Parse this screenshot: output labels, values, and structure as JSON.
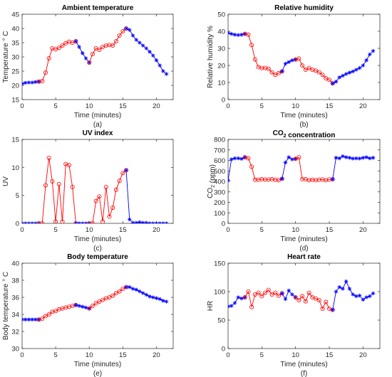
{
  "figure": {
    "colors": {
      "blue": "#0000ff",
      "red": "#ff0000"
    }
  },
  "chart_data": [
    {
      "type": "line",
      "title": "Ambient temperature",
      "xlabel": "Time (minutes)",
      "ylabel": "Temperature ° C",
      "caption": "(a)",
      "xlim": [
        0,
        22.5
      ],
      "ylim": [
        15,
        45
      ],
      "xticks": [
        0,
        5,
        10,
        15,
        20
      ],
      "yticks": [
        15,
        20,
        25,
        30,
        35,
        40,
        45
      ],
      "grid": false,
      "series": [
        {
          "color": "#0000ff",
          "marker": "star",
          "x": [
            0,
            0.5,
            1,
            1.5,
            2,
            2.5
          ],
          "y": [
            20.6,
            20.9,
            21.0,
            21.0,
            21.2,
            21.3
          ]
        },
        {
          "color": "#ff0000",
          "marker": "circle",
          "x": [
            2.5,
            3,
            3.5,
            4,
            4.5,
            5,
            5.5,
            6,
            6.5,
            7,
            7.5,
            8
          ],
          "y": [
            21.3,
            21.5,
            24.5,
            29.5,
            33.0,
            32.7,
            33.2,
            34.0,
            34.8,
            35.3,
            35.0,
            35.5
          ]
        },
        {
          "color": "#0000ff",
          "marker": "star",
          "x": [
            8,
            8.5,
            9,
            9.5,
            10
          ],
          "y": [
            35.5,
            33.5,
            31.3,
            29.5,
            28.0
          ]
        },
        {
          "color": "#ff0000",
          "marker": "circle",
          "x": [
            10,
            10.5,
            11,
            11.5,
            12,
            12.5,
            13,
            13.5,
            14,
            14.5,
            15,
            15.5
          ],
          "y": [
            28.0,
            31.0,
            33.0,
            32.5,
            33.5,
            34.0,
            34.2,
            34.0,
            35.5,
            37.5,
            39.0,
            40.0
          ]
        },
        {
          "color": "#0000ff",
          "marker": "star",
          "x": [
            15.5,
            16,
            16.5,
            17,
            17.5,
            18,
            18.5,
            19,
            19.5,
            20,
            20.5,
            21,
            21.5
          ],
          "y": [
            40.0,
            39.5,
            37.5,
            36.0,
            35.0,
            34.0,
            33.0,
            31.8,
            30.5,
            28.8,
            27.0,
            25.0,
            24.0
          ]
        }
      ]
    },
    {
      "type": "line",
      "title": "Relative humidity",
      "xlabel": "Time (minutes)",
      "ylabel": "Relative humidity %",
      "caption": "(b)",
      "xlim": [
        0,
        22.5
      ],
      "ylim": [
        0,
        50
      ],
      "xticks": [
        0,
        5,
        10,
        15,
        20
      ],
      "yticks": [
        0,
        10,
        20,
        30,
        40,
        50
      ],
      "grid": false,
      "series": [
        {
          "color": "#0000ff",
          "marker": "star",
          "x": [
            0,
            0.5,
            1,
            1.5,
            2,
            2.5
          ],
          "y": [
            39.0,
            38.5,
            38.0,
            37.8,
            38.0,
            38.5
          ]
        },
        {
          "color": "#ff0000",
          "marker": "circle",
          "x": [
            2.5,
            3,
            3.5,
            4,
            4.5,
            5,
            5.5,
            6,
            6.5,
            7,
            7.5,
            8
          ],
          "y": [
            38.5,
            38.0,
            32.0,
            23.5,
            19.0,
            18.5,
            18.5,
            18.0,
            16.0,
            14.5,
            15.5,
            16.5
          ]
        },
        {
          "color": "#0000ff",
          "marker": "star",
          "x": [
            8,
            8.5,
            9,
            9.5,
            10
          ],
          "y": [
            16.5,
            21.0,
            22.0,
            23.0,
            23.5
          ]
        },
        {
          "color": "#ff0000",
          "marker": "circle",
          "x": [
            10,
            10.5,
            11,
            11.5,
            12,
            12.5,
            13,
            13.5,
            14,
            14.5,
            15,
            15.5
          ],
          "y": [
            23.5,
            24.0,
            20.0,
            17.5,
            18.5,
            17.5,
            17.0,
            16.0,
            14.5,
            12.5,
            11.5,
            9.5
          ]
        },
        {
          "color": "#0000ff",
          "marker": "star",
          "x": [
            15.5,
            16,
            16.5,
            17,
            17.5,
            18,
            18.5,
            19,
            19.5,
            20,
            20.5,
            21,
            21.5
          ],
          "y": [
            9.5,
            10.5,
            13.0,
            14.0,
            15.0,
            15.8,
            16.5,
            17.5,
            18.5,
            20.0,
            23.0,
            26.5,
            28.5
          ]
        }
      ]
    },
    {
      "type": "line",
      "title": "UV index",
      "xlabel": "Time (minutes)",
      "ylabel": "UV",
      "caption": "(c)",
      "xlim": [
        0,
        22.5
      ],
      "ylim": [
        0,
        15
      ],
      "xticks": [
        0,
        5,
        10,
        15,
        20
      ],
      "yticks": [
        0,
        5,
        10,
        15
      ],
      "grid": false,
      "series": [
        {
          "color": "#0000ff",
          "marker": "star",
          "x": [
            0,
            0.5,
            1,
            1.5,
            2,
            2.5
          ],
          "y": [
            0,
            0,
            0,
            0,
            0,
            0
          ]
        },
        {
          "color": "#ff0000",
          "marker": "circle",
          "x": [
            2.5,
            3,
            3.5,
            4,
            4.5,
            5,
            5.5,
            6,
            6.5,
            7,
            7.5,
            8
          ],
          "y": [
            0,
            0,
            6.8,
            11.7,
            7.5,
            0.3,
            7.0,
            0.3,
            10.6,
            10.4,
            6.5,
            0
          ]
        },
        {
          "color": "#0000ff",
          "marker": "star",
          "x": [
            8,
            8.5,
            9,
            9.5,
            10
          ],
          "y": [
            0,
            0,
            0,
            0,
            0
          ]
        },
        {
          "color": "#ff0000",
          "marker": "circle",
          "x": [
            10,
            10.5,
            11,
            11.5,
            12,
            12.5,
            13,
            13.5,
            14,
            14.5,
            15,
            15.5
          ],
          "y": [
            0,
            0,
            4.0,
            4.8,
            0.3,
            6.5,
            1.2,
            2.8,
            6.0,
            7.6,
            9.0,
            9.5
          ]
        },
        {
          "color": "#0000ff",
          "marker": "star",
          "x": [
            15.5,
            16,
            16.5,
            17,
            17.5,
            18,
            18.5,
            19,
            19.5,
            20,
            20.5,
            21,
            21.5
          ],
          "y": [
            9.5,
            0.7,
            0.1,
            0.1,
            0.2,
            0.1,
            0.1,
            0,
            0,
            0,
            0,
            0,
            0
          ]
        }
      ]
    },
    {
      "type": "line",
      "title": "CO₂ concentration",
      "xlabel": "Time (minutes)",
      "ylabel": "CO₂ (ppm)",
      "caption": "(d)",
      "xlim": [
        0,
        22.5
      ],
      "ylim": [
        0,
        800
      ],
      "xticks": [
        0,
        5,
        10,
        15,
        20
      ],
      "yticks": [
        0,
        100,
        200,
        300,
        400,
        500,
        600,
        700,
        800
      ],
      "grid": false,
      "series": [
        {
          "color": "#0000ff",
          "marker": "star",
          "x": [
            0,
            0.5,
            1,
            1.5,
            2,
            2.5
          ],
          "y": [
            410,
            610,
            620,
            620,
            615,
            630
          ]
        },
        {
          "color": "#ff0000",
          "marker": "circle",
          "x": [
            2.5,
            3,
            3.5,
            4,
            4.5,
            5,
            5.5,
            6,
            6.5,
            7,
            7.5,
            8
          ],
          "y": [
            630,
            620,
            540,
            415,
            415,
            420,
            418,
            418,
            420,
            415,
            412,
            425
          ]
        },
        {
          "color": "#0000ff",
          "marker": "star",
          "x": [
            8,
            8.5,
            9,
            9.5,
            10
          ],
          "y": [
            425,
            580,
            630,
            610,
            615
          ]
        },
        {
          "color": "#ff0000",
          "marker": "circle",
          "x": [
            10,
            10.5,
            11,
            11.5,
            12,
            12.5,
            13,
            13.5,
            14,
            14.5,
            15,
            15.5
          ],
          "y": [
            615,
            630,
            420,
            420,
            412,
            415,
            412,
            415,
            418,
            412,
            418,
            420
          ]
        },
        {
          "color": "#0000ff",
          "marker": "star",
          "x": [
            15.5,
            16,
            16.5,
            17,
            17.5,
            18,
            18.5,
            19,
            19.5,
            20,
            20.5,
            21,
            21.5
          ],
          "y": [
            420,
            625,
            620,
            640,
            630,
            625,
            618,
            620,
            618,
            625,
            630,
            620,
            625
          ]
        }
      ]
    },
    {
      "type": "line",
      "title": "Body temperature",
      "xlabel": "Time (minutes)",
      "ylabel": "Body temperature ° C",
      "caption": "(e)",
      "xlim": [
        0,
        22.5
      ],
      "ylim": [
        30,
        40
      ],
      "xticks": [
        0,
        5,
        10,
        15,
        20
      ],
      "yticks": [
        30,
        32,
        34,
        36,
        38,
        40
      ],
      "grid": false,
      "series": [
        {
          "color": "#0000ff",
          "marker": "star",
          "x": [
            0,
            0.5,
            1,
            1.5,
            2,
            2.5
          ],
          "y": [
            33.4,
            33.4,
            33.4,
            33.4,
            33.4,
            33.4
          ]
        },
        {
          "color": "#ff0000",
          "marker": "circle",
          "x": [
            2.5,
            3,
            3.5,
            4,
            4.5,
            5,
            5.5,
            6,
            6.5,
            7,
            7.5,
            8
          ],
          "y": [
            33.4,
            33.5,
            33.8,
            34.0,
            34.3,
            34.4,
            34.6,
            34.7,
            34.8,
            34.9,
            35.0,
            35.1
          ]
        },
        {
          "color": "#0000ff",
          "marker": "star",
          "x": [
            8,
            8.5,
            9,
            9.5,
            10
          ],
          "y": [
            35.1,
            35.0,
            34.9,
            34.8,
            34.7
          ]
        },
        {
          "color": "#ff0000",
          "marker": "circle",
          "x": [
            10,
            10.5,
            11,
            11.5,
            12,
            12.5,
            13,
            13.5,
            14,
            14.5,
            15,
            15.5
          ],
          "y": [
            34.7,
            35.0,
            35.3,
            35.5,
            35.7,
            35.9,
            36.0,
            36.2,
            36.5,
            36.7,
            37.0,
            37.2
          ]
        },
        {
          "color": "#0000ff",
          "marker": "star",
          "x": [
            15.5,
            16,
            16.5,
            17,
            17.5,
            18,
            18.5,
            19,
            19.5,
            20,
            20.5,
            21,
            21.5
          ],
          "y": [
            37.2,
            37.2,
            37.0,
            36.9,
            36.7,
            36.5,
            36.3,
            36.1,
            36.0,
            35.9,
            35.8,
            35.6,
            35.5
          ]
        }
      ]
    },
    {
      "type": "line",
      "title": "Heart rate",
      "xlabel": "Time (minutes)",
      "ylabel": "HR",
      "caption": "(f)",
      "xlim": [
        0,
        22.5
      ],
      "ylim": [
        0,
        150
      ],
      "xticks": [
        0,
        5,
        10,
        15,
        20
      ],
      "yticks": [
        0,
        50,
        100,
        150
      ],
      "grid": false,
      "series": [
        {
          "color": "#0000ff",
          "marker": "star",
          "x": [
            0,
            0.5,
            1,
            1.5,
            2,
            2.5
          ],
          "y": [
            74,
            75,
            80,
            90,
            88,
            90
          ]
        },
        {
          "color": "#ff0000",
          "marker": "circle",
          "x": [
            2.5,
            3,
            3.5,
            4,
            4.5,
            5,
            5.5,
            6,
            6.5,
            7,
            7.5,
            8
          ],
          "y": [
            90,
            100,
            73,
            95,
            98,
            92,
            98,
            103,
            95,
            98,
            93,
            97
          ]
        },
        {
          "color": "#0000ff",
          "marker": "star",
          "x": [
            8,
            8.5,
            9,
            9.5,
            10
          ],
          "y": [
            97,
            87,
            102,
            95,
            90
          ]
        },
        {
          "color": "#ff0000",
          "marker": "circle",
          "x": [
            10,
            10.5,
            11,
            11.5,
            12,
            12.5,
            13,
            13.5,
            14,
            14.5,
            15,
            15.5
          ],
          "y": [
            90,
            85,
            92,
            83,
            98,
            90,
            88,
            85,
            70,
            82,
            70,
            68
          ]
        },
        {
          "color": "#0000ff",
          "marker": "star",
          "x": [
            15.5,
            16,
            16.5,
            17,
            17.5,
            18,
            18.5,
            19,
            19.5,
            20,
            20.5,
            21,
            21.5
          ],
          "y": [
            68,
            100,
            108,
            105,
            118,
            105,
            95,
            92,
            93,
            86,
            90,
            92,
            97
          ]
        }
      ]
    }
  ]
}
